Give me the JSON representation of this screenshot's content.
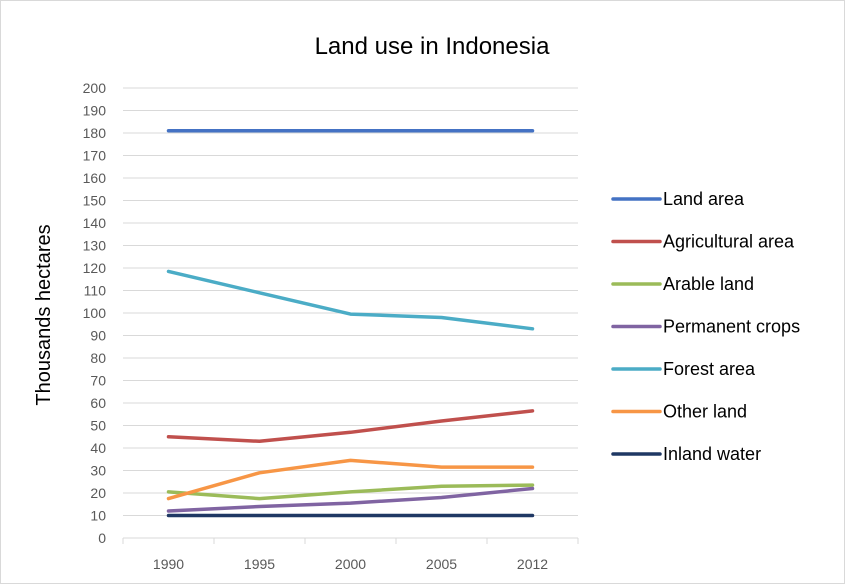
{
  "chart_data": {
    "type": "line",
    "title": "Land use in Indonesia",
    "xlabel": "",
    "ylabel": "Thousands hectares",
    "categories": [
      "1990",
      "1995",
      "2000",
      "2005",
      "2012"
    ],
    "ylim": [
      0,
      200
    ],
    "ytick_step": 10,
    "grid": true,
    "legend_position": "right",
    "series": [
      {
        "name": "Land area",
        "color": "#4472c4",
        "values": [
          181,
          181,
          181,
          181,
          181
        ]
      },
      {
        "name": "Agricultural area",
        "color": "#c0504d",
        "values": [
          45,
          43,
          47,
          52,
          56.5
        ]
      },
      {
        "name": "Arable land",
        "color": "#9bbb59",
        "values": [
          20.5,
          17.5,
          20.5,
          23,
          23.5
        ]
      },
      {
        "name": "Permanent crops",
        "color": "#8064a2",
        "values": [
          12,
          14,
          15.5,
          18,
          22
        ]
      },
      {
        "name": "Forest area",
        "color": "#4bacc6",
        "values": [
          118.5,
          109,
          99.5,
          98,
          93
        ]
      },
      {
        "name": "Other land",
        "color": "#f79646",
        "values": [
          17.5,
          29,
          34.5,
          31.5,
          31.5
        ]
      },
      {
        "name": "Inland water",
        "color": "#1f3864",
        "values": [
          10,
          10,
          10,
          10,
          10
        ]
      }
    ]
  }
}
